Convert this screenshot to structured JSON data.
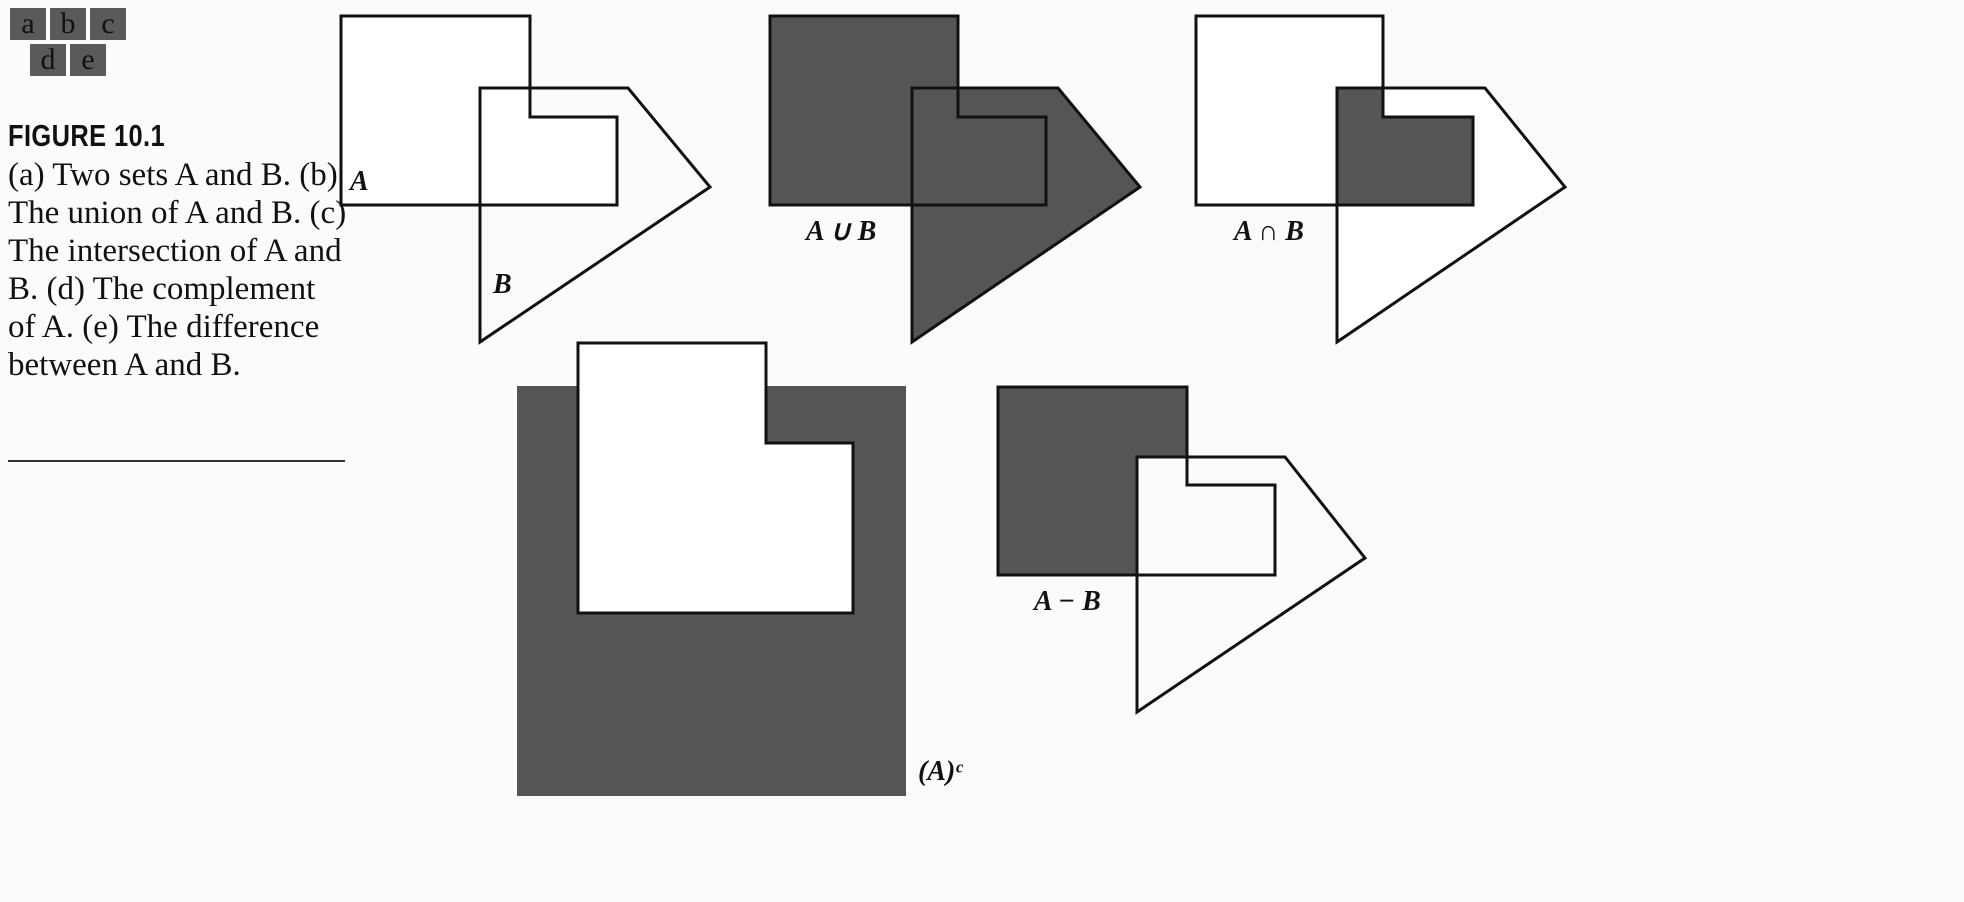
{
  "panel_key": {
    "row1": [
      "a",
      "b",
      "c"
    ],
    "row2": [
      "d",
      "e"
    ]
  },
  "caption": {
    "title": "FIGURE 10.1",
    "text": "(a) Two sets A and B. (b) The union of A and B. (c) The intersection of A and B. (d) The complement of A. (e) The difference between A and B."
  },
  "labels": {
    "a_label_A": "A",
    "a_label_B": "B",
    "b_union": "A ∪ B",
    "c_intersection": "A ∩ B",
    "d_complement": "(A)ᶜ",
    "e_difference": "A − B"
  },
  "colors": {
    "fill_dark": "#555555",
    "stroke": "#111111",
    "background": "#fbfbf9"
  }
}
